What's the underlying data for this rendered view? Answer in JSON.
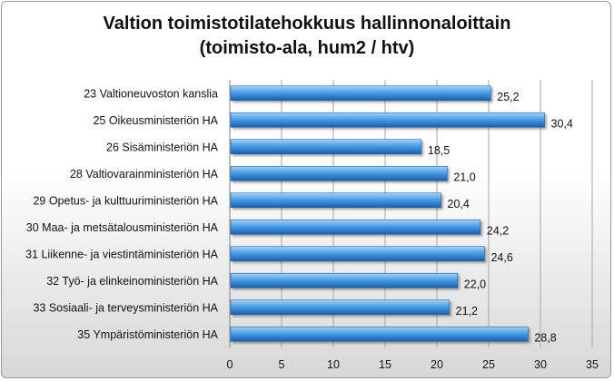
{
  "chart_data": {
    "type": "bar",
    "orientation": "horizontal",
    "title_lines": [
      "Valtion toimistotilatehokkuus hallinnonaloittain",
      "(toimisto-ala, hum2 / htv)"
    ],
    "categories": [
      "23 Valtioneuvoston kanslia",
      "25 Oikeusministeriön HA",
      "26 Sisäministeriön HA",
      "28 Valtiovarainministeriön HA",
      "29 Opetus- ja kulttuuriministeriön HA",
      "30 Maa- ja metsätalousministeriön HA",
      "31 Liikenne- ja viestintäministeriön HA",
      "32 Työ- ja elinkeinoministeriön HA",
      "33 Sosiaali- ja terveysministeriön HA",
      "35 Ympäristöministeriön HA"
    ],
    "values": [
      25.2,
      30.4,
      18.5,
      21.0,
      20.4,
      24.2,
      24.6,
      22.0,
      21.2,
      28.8
    ],
    "value_labels": [
      "25,2",
      "30,4",
      "18,5",
      "21,0",
      "20,4",
      "24,2",
      "24,6",
      "22,0",
      "21,2",
      "28,8"
    ],
    "xlim": [
      0,
      35
    ],
    "xticks": [
      0,
      5,
      10,
      15,
      20,
      25,
      30,
      35
    ],
    "grid": true,
    "legend": "none",
    "colors": {
      "bar_light": "#a9d3f5",
      "bar_mid": "#4a9ee6",
      "bar_dark": "#1c5fa8",
      "grid": "#a6a6a6"
    }
  }
}
